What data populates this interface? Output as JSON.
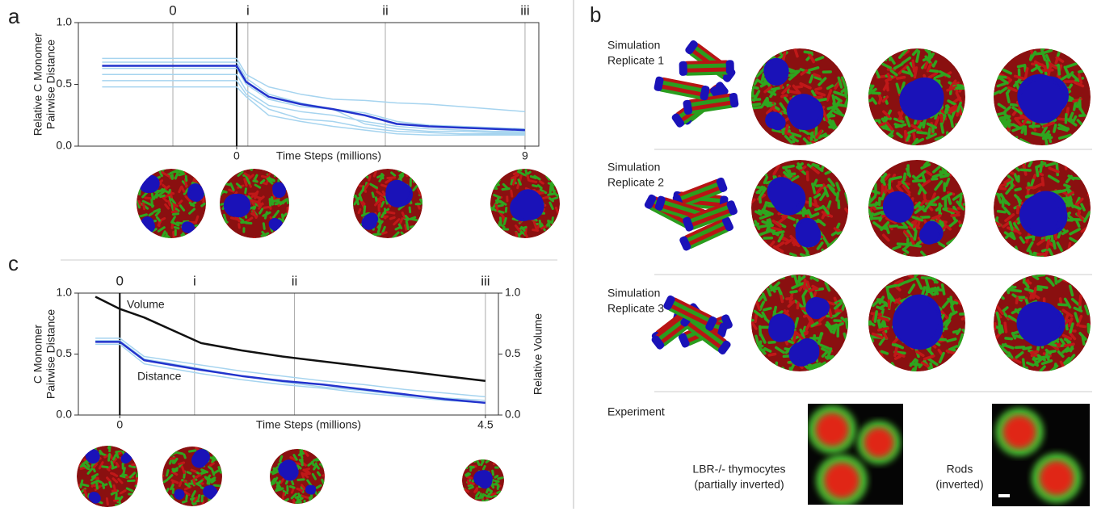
{
  "chart_data": [
    {
      "type": "line",
      "panel_label": "a",
      "xlabel": "Time Steps (millions)",
      "ylabel": [
        "Relative C Monomer",
        "Pairwise Distance"
      ],
      "xlim": [
        -4.94,
        9.43
      ],
      "ylim": [
        0,
        1
      ],
      "xticks": [
        0,
        9
      ],
      "yticks": [
        {
          "value": 0,
          "label": "0.0"
        },
        {
          "value": 0.5,
          "label": "0.5"
        },
        {
          "value": 1,
          "label": "1.0"
        }
      ],
      "x2ticks": [
        {
          "value": -1.99,
          "label": "0"
        },
        {
          "value": 0.35,
          "label": "i"
        },
        {
          "value": 4.64,
          "label": "ii"
        },
        {
          "value": 9,
          "label": "iii"
        }
      ],
      "x": [
        -4.2,
        0,
        0.3,
        1,
        2,
        3,
        4,
        5,
        6,
        7,
        8,
        9
      ],
      "series": [
        {
          "color": "#a6d4ef",
          "values": [
            0.71,
            0.71,
            0.58,
            0.48,
            0.42,
            0.38,
            0.37,
            0.35,
            0.34,
            0.32,
            0.3,
            0.28
          ]
        },
        {
          "color": "#a6d4ef",
          "values": [
            0.68,
            0.68,
            0.55,
            0.42,
            0.35,
            0.3,
            0.27,
            0.2,
            0.17,
            0.16,
            0.15,
            0.14
          ]
        },
        {
          "color": "#a6d4ef",
          "values": [
            0.63,
            0.63,
            0.5,
            0.38,
            0.32,
            0.3,
            0.18,
            0.14,
            0.12,
            0.12,
            0.11,
            0.11
          ]
        },
        {
          "color": "#a6d4ef",
          "values": [
            0.58,
            0.58,
            0.45,
            0.33,
            0.28,
            0.25,
            0.2,
            0.16,
            0.14,
            0.13,
            0.12,
            0.12
          ]
        },
        {
          "color": "#a6d4ef",
          "values": [
            0.53,
            0.53,
            0.42,
            0.3,
            0.22,
            0.2,
            0.15,
            0.12,
            0.11,
            0.1,
            0.1,
            0.1
          ]
        },
        {
          "color": "#a6d4ef",
          "values": [
            0.48,
            0.48,
            0.4,
            0.25,
            0.2,
            0.16,
            0.13,
            0.1,
            0.09,
            0.09,
            0.09,
            0.09
          ]
        },
        {
          "color": "#2233cc",
          "values": [
            0.65,
            0.65,
            0.52,
            0.4,
            0.34,
            0.3,
            0.25,
            0.18,
            0.16,
            0.15,
            0.14,
            0.13
          ]
        }
      ]
    },
    {
      "type": "line",
      "panel_label": "c",
      "xlabel": "Time Steps (millions)",
      "ylabel": [
        "C Monomer",
        "Pairwise Distance"
      ],
      "y2label": "Relative Volume",
      "xlim": [
        -0.51,
        4.66
      ],
      "ylim": [
        0,
        1
      ],
      "y2lim": [
        0,
        1
      ],
      "xticks": [
        0,
        4.5
      ],
      "yticks": [
        {
          "value": 0,
          "label": "0.0"
        },
        {
          "value": 0.5,
          "label": "0.5"
        },
        {
          "value": 1,
          "label": "1.0"
        }
      ],
      "y2ticks": [
        {
          "value": 0,
          "label": "0.0"
        },
        {
          "value": 0.5,
          "label": "0.5"
        },
        {
          "value": 1,
          "label": "1.0"
        }
      ],
      "x2ticks": [
        {
          "value": 0,
          "label": "0"
        },
        {
          "value": 0.92,
          "label": "i"
        },
        {
          "value": 2.15,
          "label": "ii"
        },
        {
          "value": 4.5,
          "label": "iii"
        }
      ],
      "annotations": [
        {
          "text": "Volume"
        },
        {
          "text": "Distance",
          "color": "#2233cc"
        }
      ],
      "x": [
        -0.3,
        0,
        0.3,
        1,
        1.5,
        2,
        2.5,
        3,
        3.5,
        4,
        4.5
      ],
      "series": [
        {
          "color": "#a6d4ef",
          "values": [
            0.63,
            0.63,
            0.48,
            0.41,
            0.36,
            0.32,
            0.28,
            0.25,
            0.21,
            0.18,
            0.15
          ]
        },
        {
          "color": "#a6d4ef",
          "values": [
            0.58,
            0.58,
            0.42,
            0.34,
            0.29,
            0.25,
            0.22,
            0.18,
            0.15,
            0.12,
            0.1
          ]
        },
        {
          "color": "#a6d4ef",
          "values": [
            0.61,
            0.61,
            0.46,
            0.38,
            0.32,
            0.27,
            0.23,
            0.2,
            0.16,
            0.14,
            0.12
          ]
        },
        {
          "color": "#2233cc",
          "values": [
            0.6,
            0.6,
            0.45,
            0.37,
            0.32,
            0.28,
            0.25,
            0.21,
            0.17,
            0.13,
            0.1
          ]
        },
        {
          "color": "#111111",
          "axis": "y2",
          "values": [
            0.97,
            0.87,
            0.8,
            0.59,
            0.53,
            0.48,
            0.44,
            0.4,
            0.36,
            0.32,
            0.28
          ]
        }
      ]
    }
  ],
  "panel_b": {
    "label": "b",
    "replicates": [
      [
        "Simulation",
        "Replicate 1"
      ],
      [
        "Simulation",
        "Replicate 2"
      ],
      [
        "Simulation",
        "Replicate 3"
      ]
    ],
    "experiment": "Experiment",
    "captions": [
      [
        "LBR-/- thymocytes",
        "(partially inverted)"
      ],
      [
        "Rods",
        "(inverted)"
      ]
    ]
  }
}
